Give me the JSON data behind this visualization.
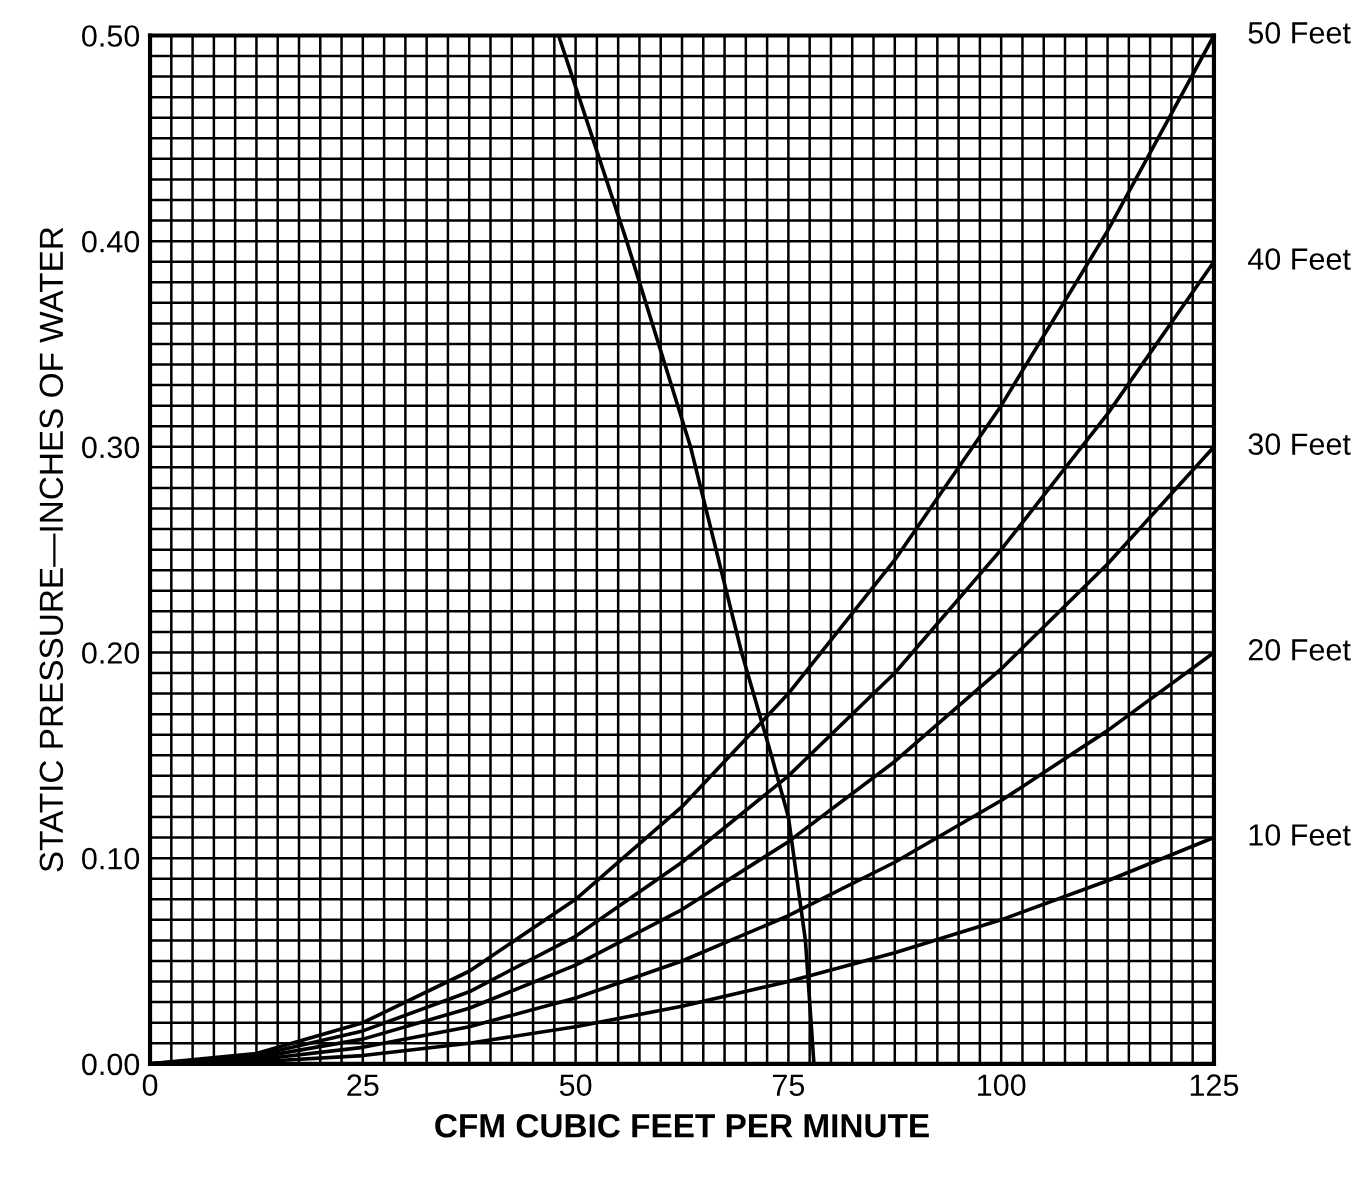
{
  "chart_data": {
    "type": "line",
    "xlabel": "CFM CUBIC FEET PER MINUTE",
    "ylabel": "STATIC PRESSURE—INCHES OF WATER",
    "x": [
      0,
      12.5,
      25,
      37.5,
      50,
      62.5,
      75,
      87.5,
      100,
      112.5,
      125
    ],
    "series": [
      {
        "name": "50 Feet",
        "color": "#000000",
        "values": [
          0,
          0.005,
          0.02,
          0.045,
          0.08,
          0.125,
          0.18,
          0.245,
          0.32,
          0.405,
          0.5
        ]
      },
      {
        "name": "40 Feet",
        "color": "#000000",
        "values": [
          0,
          0.004,
          0.016,
          0.035,
          0.062,
          0.098,
          0.14,
          0.19,
          0.25,
          0.316,
          0.39
        ]
      },
      {
        "name": "30 Feet",
        "color": "#000000",
        "values": [
          0,
          0.003,
          0.012,
          0.027,
          0.048,
          0.075,
          0.108,
          0.147,
          0.192,
          0.243,
          0.3
        ]
      },
      {
        "name": "20 Feet",
        "color": "#000000",
        "values": [
          0,
          0.002,
          0.008,
          0.018,
          0.032,
          0.05,
          0.072,
          0.098,
          0.128,
          0.162,
          0.2
        ]
      },
      {
        "name": "10 Feet",
        "color": "#000000",
        "values": [
          0,
          0.001,
          0.004,
          0.01,
          0.018,
          0.028,
          0.04,
          0.054,
          0.07,
          0.089,
          0.11
        ]
      },
      {
        "color": "#000000",
        "x": [
          48,
          56,
          63.5,
          69.5,
          73,
          75,
          77,
          78
        ],
        "values": [
          0.5,
          0.4,
          0.3,
          0.2,
          0.15,
          0.12,
          0.06,
          0
        ]
      }
    ],
    "xlim": [
      0,
      125
    ],
    "ylim": [
      0,
      0.5
    ],
    "xticks": [
      0,
      {
        "value": 2.5,
        "label": null
      },
      {
        "value": 5,
        "label": null
      },
      {
        "value": 7.5,
        "label": null
      },
      {
        "value": 10,
        "label": null
      },
      {
        "value": 12.5,
        "label": null
      },
      {
        "value": 15,
        "label": null
      },
      {
        "value": 17.5,
        "label": null
      },
      {
        "value": 20,
        "label": null
      },
      {
        "value": 22.5,
        "label": null
      },
      25,
      {
        "value": 27.5,
        "label": null
      },
      {
        "value": 30,
        "label": null
      },
      {
        "value": 32.5,
        "label": null
      },
      {
        "value": 35,
        "label": null
      },
      {
        "value": 37.5,
        "label": null
      },
      {
        "value": 40,
        "label": null
      },
      {
        "value": 42.5,
        "label": null
      },
      {
        "value": 45,
        "label": null
      },
      {
        "value": 47.5,
        "label": null
      },
      50,
      {
        "value": 52.5,
        "label": null
      },
      {
        "value": 55,
        "label": null
      },
      {
        "value": 57.5,
        "label": null
      },
      {
        "value": 60,
        "label": null
      },
      {
        "value": 62.5,
        "label": null
      },
      {
        "value": 65,
        "label": null
      },
      {
        "value": 67.5,
        "label": null
      },
      {
        "value": 70,
        "label": null
      },
      {
        "value": 72.5,
        "label": null
      },
      75,
      {
        "value": 77.5,
        "label": null
      },
      {
        "value": 80,
        "label": null
      },
      {
        "value": 82.5,
        "label": null
      },
      {
        "value": 85,
        "label": null
      },
      {
        "value": 87.5,
        "label": null
      },
      {
        "value": 90,
        "label": null
      },
      {
        "value": 92.5,
        "label": null
      },
      {
        "value": 95,
        "label": null
      },
      {
        "value": 97.5,
        "label": null
      },
      100,
      {
        "value": 102.5,
        "label": null
      },
      {
        "value": 105,
        "label": null
      },
      {
        "value": 107.5,
        "label": null
      },
      {
        "value": 110,
        "label": null
      },
      {
        "value": 112.5,
        "label": null
      },
      {
        "value": 115,
        "label": null
      },
      {
        "value": 117.5,
        "label": null
      },
      {
        "value": 120,
        "label": null
      },
      {
        "value": 122.5,
        "label": null
      },
      125
    ],
    "yticks": [
      {
        "value": 0,
        "label": "0.00"
      },
      {
        "value": 0.01,
        "label": null
      },
      {
        "value": 0.02,
        "label": null
      },
      {
        "value": 0.03,
        "label": null
      },
      {
        "value": 0.04,
        "label": null
      },
      {
        "value": 0.05,
        "label": null
      },
      {
        "value": 0.06,
        "label": null
      },
      {
        "value": 0.07,
        "label": null
      },
      {
        "value": 0.08,
        "label": null
      },
      {
        "value": 0.09,
        "label": null
      },
      {
        "value": 0.1,
        "label": "0.10"
      },
      {
        "value": 0.11,
        "label": null
      },
      {
        "value": 0.12,
        "label": null
      },
      {
        "value": 0.13,
        "label": null
      },
      {
        "value": 0.14,
        "label": null
      },
      {
        "value": 0.15,
        "label": null
      },
      {
        "value": 0.16,
        "label": null
      },
      {
        "value": 0.17,
        "label": null
      },
      {
        "value": 0.18,
        "label": null
      },
      {
        "value": 0.19,
        "label": null
      },
      {
        "value": 0.2,
        "label": "0.20"
      },
      {
        "value": 0.21,
        "label": null
      },
      {
        "value": 0.22,
        "label": null
      },
      {
        "value": 0.23,
        "label": null
      },
      {
        "value": 0.24,
        "label": null
      },
      {
        "value": 0.25,
        "label": null
      },
      {
        "value": 0.26,
        "label": null
      },
      {
        "value": 0.27,
        "label": null
      },
      {
        "value": 0.28,
        "label": null
      },
      {
        "value": 0.29,
        "label": null
      },
      {
        "value": 0.3,
        "label": "0.30"
      },
      {
        "value": 0.31,
        "label": null
      },
      {
        "value": 0.32,
        "label": null
      },
      {
        "value": 0.33,
        "label": null
      },
      {
        "value": 0.34,
        "label": null
      },
      {
        "value": 0.35,
        "label": null
      },
      {
        "value": 0.36,
        "label": null
      },
      {
        "value": 0.37,
        "label": null
      },
      {
        "value": 0.38,
        "label": null
      },
      {
        "value": 0.39,
        "label": null
      },
      {
        "value": 0.4,
        "label": "0.40"
      },
      {
        "value": 0.41,
        "label": null
      },
      {
        "value": 0.42,
        "label": null
      },
      {
        "value": 0.43,
        "label": null
      },
      {
        "value": 0.44,
        "label": null
      },
      {
        "value": 0.45,
        "label": null
      },
      {
        "value": 0.46,
        "label": null
      },
      {
        "value": 0.47,
        "label": null
      },
      {
        "value": 0.48,
        "label": null
      },
      {
        "value": 0.49,
        "label": null
      },
      {
        "value": 0.5,
        "label": "0.50"
      }
    ],
    "grid": true,
    "line_style": "solid"
  }
}
